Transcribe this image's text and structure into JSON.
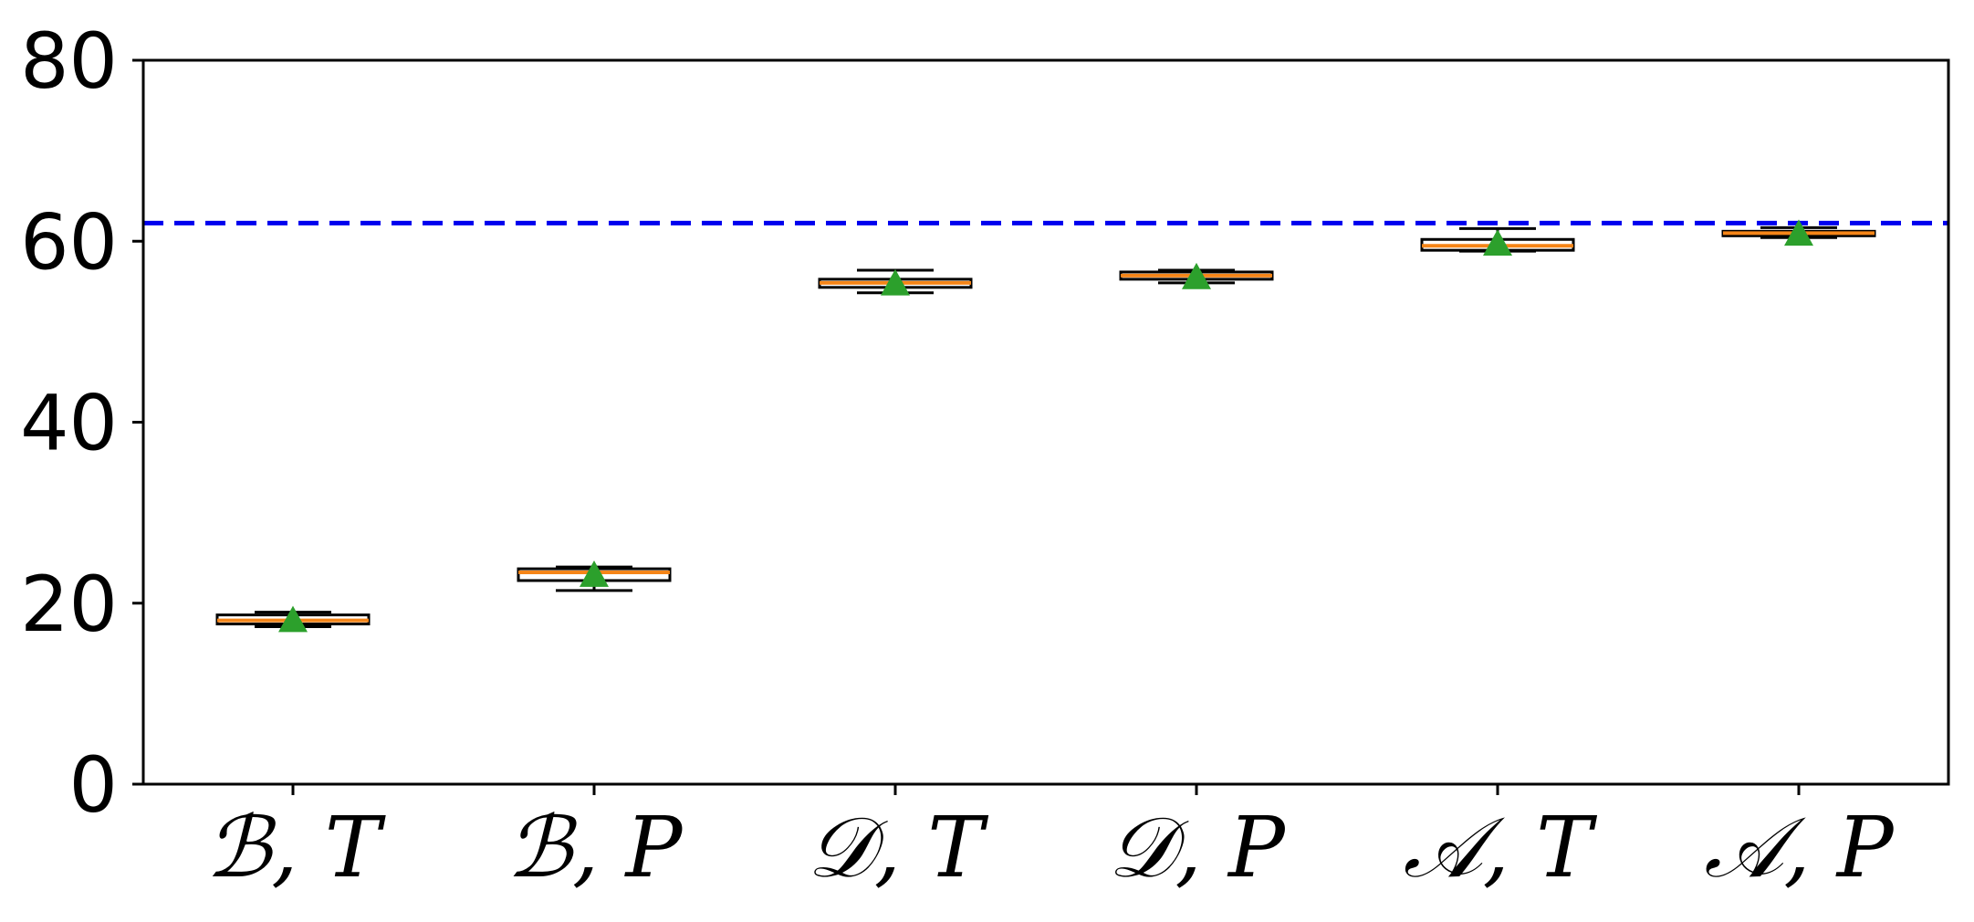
{
  "chart_data": {
    "type": "box",
    "title": "",
    "xlabel": "",
    "ylabel": "",
    "ylim": [
      0,
      80
    ],
    "yticks": [
      0,
      20,
      40,
      60,
      80
    ],
    "grid": false,
    "categories": [
      "ℬ, T",
      "ℬ, P",
      "𝒟, T",
      "𝒟, P",
      "𝒜, T",
      "𝒜, P"
    ],
    "boxes": [
      {
        "category": "ℬ, T",
        "whisker_low": 17.4,
        "q1": 17.7,
        "median": 18.1,
        "q3": 18.7,
        "whisker_high": 19.0,
        "mean": 18.1
      },
      {
        "category": "ℬ, P",
        "whisker_low": 21.4,
        "q1": 22.5,
        "median": 23.4,
        "q3": 23.8,
        "whisker_high": 24.0,
        "mean": 23.1
      },
      {
        "category": "𝒟, T",
        "whisker_low": 54.3,
        "q1": 54.9,
        "median": 55.4,
        "q3": 55.8,
        "whisker_high": 56.8,
        "mean": 55.3
      },
      {
        "category": "𝒟, P",
        "whisker_low": 55.4,
        "q1": 55.8,
        "median": 56.2,
        "q3": 56.6,
        "whisker_high": 56.8,
        "mean": 56.0
      },
      {
        "category": "𝒜, T",
        "whisker_low": 58.9,
        "q1": 59.0,
        "median": 59.5,
        "q3": 60.2,
        "whisker_high": 61.4,
        "mean": 59.7
      },
      {
        "category": "𝒜, P",
        "whisker_low": 60.4,
        "q1": 60.6,
        "median": 60.9,
        "q3": 61.1,
        "whisker_high": 61.5,
        "mean": 60.8
      }
    ],
    "reference_line": {
      "y": 62.0,
      "style": "dashed",
      "color": "#0000ee"
    },
    "colors": {
      "box_edge": "#000000",
      "median": "#f58518",
      "mean_marker": "#2ca02c"
    }
  }
}
